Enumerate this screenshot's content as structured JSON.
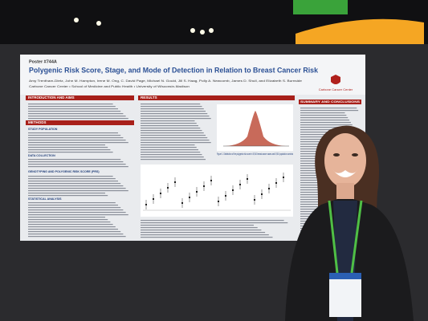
{
  "poster": {
    "number": "Poster #744A",
    "title": "Polygenic Risk Score, Stage, and Mode of Detection in Relation to Breast Cancer Risk",
    "authors": "Amy Trentham-Dietz, John M. Hampton, Irene M. Ong, C. David Page, Michael N. Gould, Jill S. Haag, Polly A. Newcomb, James D. Shull, and Elizabeth S. Burnside",
    "affiliation": "Carbone Cancer Center • School of Medicine and Public Health • University of Wisconsin-Madison",
    "logo": "Carbone Cancer Center"
  },
  "sections": [
    {
      "heading": "INTRODUCTION AND AIMS"
    },
    {
      "heading": "METHODS",
      "subheadings": [
        "STUDY POPULATION",
        "DATA COLLECTION",
        "GENOTYPING AND POLYGENIC RISK SCORE (PRS)",
        "STATISTICAL ANALYSIS"
      ]
    },
    {
      "heading": "RESULTS"
    },
    {
      "heading": "SUMMARY AND CONCLUSIONS"
    }
  ],
  "figures": [
    {
      "caption": "Figure 1. Distribution of the polygenic risk score in 5,910 breast cancer cases and 5,910 population controls"
    }
  ]
}
